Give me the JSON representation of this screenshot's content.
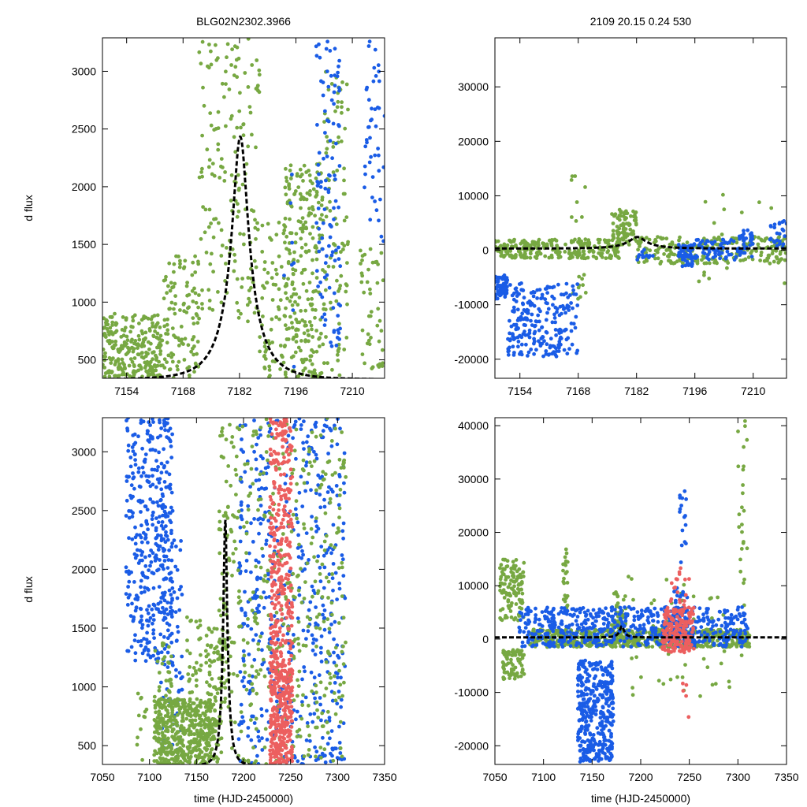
{
  "figure": {
    "title_left": "BLG02N2302.3966",
    "title_right": "2109  20.15  0.24  530",
    "ylabel": "d flux",
    "xlabel": "time (HJD-2450000)"
  },
  "colors": {
    "green": "#77a842",
    "blue": "#1a5ce6",
    "red": "#ec5f5f",
    "model": "#000000"
  },
  "chart_data": [
    {
      "id": "top-left",
      "type": "scatter",
      "title": "BLG02N2302.3966",
      "xlim": [
        7148,
        7218
      ],
      "ylim": [
        340,
        3290
      ],
      "xticks": [
        7154,
        7168,
        7182,
        7196,
        7210
      ],
      "yticks": [
        500,
        1000,
        1500,
        2000,
        2500,
        3000
      ],
      "ylabel": "d flux",
      "model": {
        "t0": 7182.2,
        "u0": 0.25,
        "tE": 8.0,
        "fs": 680,
        "base": 330
      },
      "series": [
        {
          "name": "green",
          "color": "#77a842",
          "segments": [
            [
              7148,
              7163,
              340,
              900,
              260
            ],
            [
              7163,
              7172,
              340,
              1400,
              110
            ],
            [
              7172,
              7187,
              800,
              3290,
              170
            ],
            [
              7187,
              7193,
              340,
              1700,
              60
            ],
            [
              7193,
              7203,
              340,
              2200,
              260
            ],
            [
              7203,
              7209,
              340,
              3000,
              90
            ],
            [
              7212,
              7218,
              400,
              1500,
              45
            ]
          ]
        },
        {
          "name": "blue",
          "color": "#1a5ce6",
          "segments": [
            [
              7193,
              7196,
              340,
              2300,
              8
            ],
            [
              7201,
              7207,
              600,
              3290,
              110
            ],
            [
              7213,
              7218,
              1500,
              3290,
              45
            ]
          ]
        }
      ]
    },
    {
      "id": "top-right",
      "type": "scatter",
      "title": "2109  20.15  0.24  530",
      "xlim": [
        7148,
        7218
      ],
      "ylim": [
        -23500,
        39000
      ],
      "xticks": [
        7154,
        7168,
        7182,
        7196,
        7210
      ],
      "yticks": [
        -20000,
        -10000,
        0,
        10000,
        20000,
        30000
      ],
      "model": {
        "t0": 7182.2,
        "u0": 0.25,
        "tE": 8.0,
        "fs": 680,
        "base": 330
      },
      "series": [
        {
          "name": "green",
          "color": "#77a842",
          "segments": [
            [
              7148,
              7178,
              -1500,
              2000,
              260
            ],
            [
              7166,
              7170,
              -9000,
              14000,
              25
            ],
            [
              7176,
              7182,
              1000,
              7500,
              90
            ],
            [
              7182,
              7218,
              -2500,
              2500,
              240
            ],
            [
              7195,
              7218,
              -8000,
              11000,
              20
            ]
          ]
        },
        {
          "name": "blue",
          "color": "#1a5ce6",
          "segments": [
            [
              7148,
              7151,
              -9000,
              -4500,
              60
            ],
            [
              7151,
              7168,
              -19500,
              -6000,
              240
            ],
            [
              7182,
              7187,
              -1800,
              300,
              12
            ],
            [
              7192,
              7196,
              -3000,
              1200,
              60
            ],
            [
              7196,
              7210,
              -1800,
              2000,
              70
            ],
            [
              7206,
              7210,
              -500,
              4000,
              30
            ],
            [
              7214,
              7218,
              0,
              5500,
              25
            ]
          ]
        }
      ]
    },
    {
      "id": "bottom-left",
      "type": "scatter",
      "ylim": [
        340,
        3290
      ],
      "xlim": [
        7050,
        7350
      ],
      "xticks": [
        7050,
        7100,
        7150,
        7200,
        7250,
        7300,
        7350
      ],
      "yticks": [
        500,
        1000,
        1500,
        2000,
        2500,
        3000
      ],
      "ylabel": "d flux",
      "xlabel": "time (HJD-2450000)",
      "model": {
        "t0": 7180.6,
        "u0": 0.25,
        "tE": 8.0,
        "fs": 680,
        "base": 330
      },
      "series": [
        {
          "name": "blue",
          "color": "#1a5ce6",
          "segments": [
            [
              7075,
              7125,
              1200,
              3290,
              380
            ],
            [
              7112,
              7135,
              400,
              2500,
              90
            ],
            [
              7195,
              7308,
              340,
              3290,
              520
            ]
          ]
        },
        {
          "name": "green",
          "color": "#77a842",
          "segments": [
            [
              7085,
              7098,
              340,
              1000,
              12
            ],
            [
              7105,
              7170,
              340,
              900,
              430
            ],
            [
              7105,
              7125,
              340,
              1400,
              70
            ],
            [
              7140,
              7155,
              500,
              1600,
              45
            ],
            [
              7160,
              7177,
              340,
              1500,
              90
            ],
            [
              7174,
              7186,
              800,
              3290,
              70
            ],
            [
              7186,
              7310,
              340,
              3290,
              380
            ]
          ]
        },
        {
          "name": "red",
          "color": "#ec5f5f",
          "segments": [
            [
              7228,
              7252,
              340,
              3290,
              420
            ],
            [
              7228,
              7252,
              340,
              1200,
              200
            ]
          ]
        }
      ]
    },
    {
      "id": "bottom-right",
      "type": "scatter",
      "ylim": [
        -23500,
        41500
      ],
      "xlim": [
        7050,
        7350
      ],
      "xticks": [
        7050,
        7100,
        7150,
        7200,
        7250,
        7300,
        7350
      ],
      "yticks": [
        -20000,
        -10000,
        0,
        10000,
        20000,
        30000,
        40000
      ],
      "xlabel": "time (HJD-2450000)",
      "model": {
        "t0": 7180.6,
        "u0": 0.25,
        "tE": 8.0,
        "fs": 680,
        "base": 330
      },
      "series": [
        {
          "name": "green",
          "color": "#77a842",
          "segments": [
            [
              7055,
              7080,
              3500,
              15000,
              120
            ],
            [
              7058,
              7080,
              -7500,
              -2000,
              70
            ],
            [
              7085,
              7312,
              -1500,
              1800,
              650
            ],
            [
              7120,
              7125,
              5000,
              17000,
              25
            ],
            [
              7170,
              7185,
              -2000,
              9000,
              60
            ],
            [
              7185,
              7312,
              -12000,
              12000,
              60
            ],
            [
              7300,
              7310,
              5000,
              41000,
              25
            ]
          ]
        },
        {
          "name": "blue",
          "color": "#1a5ce6",
          "segments": [
            [
              7075,
              7310,
              -1500,
              6000,
              620
            ],
            [
              7135,
              7172,
              -23000,
              -4000,
              380
            ],
            [
              7232,
              7248,
              0,
              10000,
              40
            ],
            [
              7240,
              7247,
              14000,
              28000,
              16
            ]
          ]
        },
        {
          "name": "red",
          "color": "#ec5f5f",
          "segments": [
            [
              7222,
              7255,
              -2500,
              6000,
              180
            ],
            [
              7230,
              7250,
              5000,
              14000,
              22
            ],
            [
              7243,
              7250,
              -20000,
              -8000,
              5
            ]
          ]
        }
      ]
    }
  ]
}
